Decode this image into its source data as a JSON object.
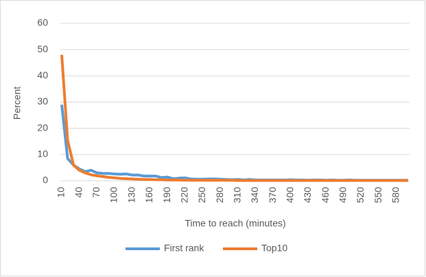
{
  "chart_data": {
    "type": "line",
    "xlabel": "Time to reach (minutes)",
    "ylabel": "Percent",
    "categories": [
      10,
      null,
      null,
      40,
      null,
      null,
      70,
      null,
      null,
      100,
      null,
      null,
      130,
      null,
      null,
      160,
      null,
      null,
      190,
      null,
      null,
      220,
      null,
      null,
      250,
      null,
      null,
      280,
      null,
      null,
      310,
      null,
      null,
      340,
      null,
      null,
      370,
      null,
      null,
      400,
      null,
      null,
      430,
      null,
      null,
      460,
      null,
      null,
      490,
      null,
      null,
      520,
      null,
      null,
      550,
      null,
      null,
      580,
      null,
      null
    ],
    "series": [
      {
        "name": "First rank",
        "color": "#5b9bd5",
        "values": [
          29,
          8.5,
          6,
          4.5,
          3.5,
          4,
          3,
          2.8,
          2.8,
          2.6,
          2.5,
          2.6,
          2.2,
          2.2,
          1.8,
          1.8,
          1.8,
          1.2,
          1.4,
          0.8,
          1,
          1.1,
          0.7,
          0.6,
          0.6,
          0.7,
          0.7,
          0.6,
          0.5,
          0.4,
          0.5,
          0.3,
          0.5,
          0.3,
          0.3,
          0.3,
          0.3,
          0.3,
          0.3,
          0.4,
          0.3,
          0.3,
          0.2,
          0.3,
          0.3,
          0.2,
          0.3,
          0.2,
          0.2,
          0.3,
          0.2,
          0.2,
          0.2,
          0.2,
          0.2,
          0.2,
          0.2,
          0.2,
          0.2,
          0.2
        ]
      },
      {
        "name": "Top10",
        "color": "#ed7d31",
        "values": [
          48,
          15.5,
          6,
          4,
          3,
          2.3,
          1.9,
          1.6,
          1.3,
          1.1,
          0.9,
          0.8,
          0.7,
          0.6,
          0.5,
          0.5,
          0.4,
          0.4,
          0.3,
          0.3,
          0.3,
          0.2,
          0.2,
          0.2,
          0.2,
          0.2,
          0.2,
          0.2,
          0.2,
          0.2,
          0.1,
          0.1,
          0.1,
          0.1,
          0.1,
          0.1,
          0.1,
          0.1,
          0.1,
          0.1,
          0.1,
          0.1,
          0.1,
          0.1,
          0.1,
          0.1,
          0.1,
          0.1,
          0.1,
          0.1,
          0.1,
          0.1,
          0.1,
          0.1,
          0.1,
          0.1,
          0.1,
          0.1,
          0.1,
          0.1
        ]
      }
    ],
    "ylim": [
      0,
      60
    ],
    "yticks": [
      0,
      10,
      20,
      30,
      40,
      50,
      60
    ],
    "grid": true,
    "legend": "bottom"
  }
}
